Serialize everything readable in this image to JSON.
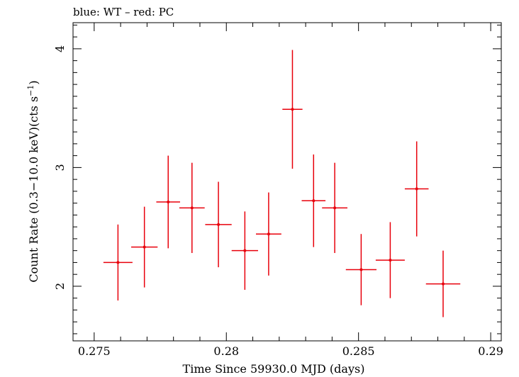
{
  "chart_data": {
    "type": "scatter",
    "title": "blue: WT – red: PC",
    "xlabel": "Time Since 59930.0 MJD (days)",
    "ylabel_main": "Count Rate (0.3−10.0 keV)(cts s",
    "ylabel_sup": "−1",
    "ylabel_close": ")",
    "xlim": [
      0.2742,
      0.2904
    ],
    "ylim": [
      1.54,
      4.22
    ],
    "xticks": [
      {
        "v": 0.275,
        "label": "0.275"
      },
      {
        "v": 0.28,
        "label": "0.28"
      },
      {
        "v": 0.285,
        "label": "0.285"
      },
      {
        "v": 0.29,
        "label": "0.29"
      }
    ],
    "yticks": [
      {
        "v": 2,
        "label": "2"
      },
      {
        "v": 3,
        "label": "3"
      },
      {
        "v": 4,
        "label": "4"
      }
    ],
    "grid": false,
    "series": [
      {
        "color": "#e8000b",
        "points": [
          {
            "x": 0.2759,
            "y": 2.2,
            "xerr": 0.00055,
            "yerr_lo": 0.32,
            "yerr_hi": 0.32
          },
          {
            "x": 0.2769,
            "y": 2.33,
            "xerr": 0.0005,
            "yerr_lo": 0.34,
            "yerr_hi": 0.34
          },
          {
            "x": 0.2778,
            "y": 2.71,
            "xerr": 0.00045,
            "yerr_lo": 0.39,
            "yerr_hi": 0.39
          },
          {
            "x": 0.2787,
            "y": 2.66,
            "xerr": 0.00048,
            "yerr_lo": 0.38,
            "yerr_hi": 0.38
          },
          {
            "x": 0.2797,
            "y": 2.52,
            "xerr": 0.0005,
            "yerr_lo": 0.36,
            "yerr_hi": 0.36
          },
          {
            "x": 0.2807,
            "y": 2.3,
            "xerr": 0.0005,
            "yerr_lo": 0.33,
            "yerr_hi": 0.33
          },
          {
            "x": 0.2816,
            "y": 2.44,
            "xerr": 0.00048,
            "yerr_lo": 0.35,
            "yerr_hi": 0.35
          },
          {
            "x": 0.2825,
            "y": 3.49,
            "xerr": 0.00038,
            "yerr_lo": 0.5,
            "yerr_hi": 0.5
          },
          {
            "x": 0.2833,
            "y": 2.72,
            "xerr": 0.00045,
            "yerr_lo": 0.39,
            "yerr_hi": 0.39
          },
          {
            "x": 0.2841,
            "y": 2.66,
            "xerr": 0.00048,
            "yerr_lo": 0.38,
            "yerr_hi": 0.38
          },
          {
            "x": 0.2851,
            "y": 2.14,
            "xerr": 0.00058,
            "yerr_lo": 0.3,
            "yerr_hi": 0.3
          },
          {
            "x": 0.2862,
            "y": 2.22,
            "xerr": 0.00055,
            "yerr_lo": 0.32,
            "yerr_hi": 0.32
          },
          {
            "x": 0.2872,
            "y": 2.82,
            "xerr": 0.00045,
            "yerr_lo": 0.4,
            "yerr_hi": 0.4
          },
          {
            "x": 0.2882,
            "y": 2.02,
            "xerr": 0.00065,
            "yerr_lo": 0.28,
            "yerr_hi": 0.28
          }
        ]
      }
    ]
  }
}
